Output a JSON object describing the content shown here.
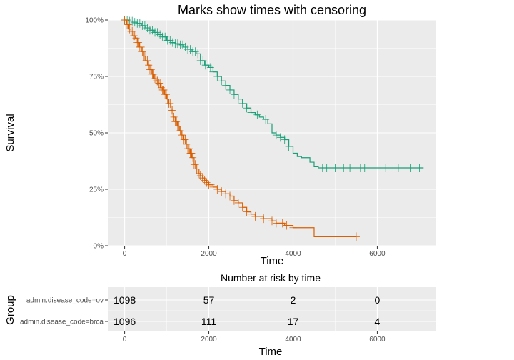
{
  "chart_data": [
    {
      "type": "line",
      "subtype": "kaplan-meier",
      "title": "Marks show times with censoring",
      "xlabel": "Time",
      "ylabel": "Survival",
      "xlim": [
        -400,
        7400
      ],
      "ylim": [
        0,
        1
      ],
      "x_ticks": [
        0,
        2000,
        4000,
        6000
      ],
      "y_ticks": [
        0,
        0.25,
        0.5,
        0.75,
        1.0
      ],
      "y_tick_labels": [
        "0%",
        "25%",
        "50%",
        "75%",
        "100%"
      ],
      "grid": true,
      "legend": "none",
      "series": [
        {
          "key": "ov",
          "color": "#1b9e77",
          "x": [
            0,
            100,
            200,
            300,
            400,
            500,
            600,
            700,
            800,
            900,
            1000,
            1100,
            1200,
            1300,
            1400,
            1500,
            1600,
            1700,
            1800,
            1900,
            2000,
            2100,
            2200,
            2300,
            2400,
            2500,
            2600,
            2700,
            2800,
            2900,
            3000,
            3100,
            3200,
            3300,
            3400,
            3500,
            3600,
            3700,
            3800,
            3900,
            4000,
            4100,
            4200,
            4400,
            4500,
            4600,
            5000,
            5500,
            6000,
            6500,
            7000,
            7100
          ],
          "y": [
            1.0,
            0.995,
            0.99,
            0.985,
            0.975,
            0.965,
            0.955,
            0.945,
            0.935,
            0.925,
            0.91,
            0.9,
            0.895,
            0.89,
            0.88,
            0.87,
            0.86,
            0.85,
            0.82,
            0.8,
            0.79,
            0.77,
            0.75,
            0.73,
            0.71,
            0.69,
            0.67,
            0.65,
            0.63,
            0.61,
            0.59,
            0.58,
            0.57,
            0.56,
            0.54,
            0.5,
            0.49,
            0.48,
            0.47,
            0.44,
            0.41,
            0.395,
            0.39,
            0.37,
            0.35,
            0.345,
            0.345,
            0.345,
            0.345,
            0.345,
            0.345,
            0.345
          ],
          "censor_x": [
            0,
            60,
            120,
            180,
            240,
            300,
            360,
            420,
            480,
            540,
            600,
            660,
            720,
            780,
            840,
            900,
            960,
            1020,
            1080,
            1140,
            1200,
            1260,
            1320,
            1380,
            1440,
            1500,
            1560,
            1620,
            1680,
            1740,
            1800,
            1860,
            1920,
            1980,
            2040,
            2100,
            2200,
            2300,
            2400,
            2500,
            2600,
            2700,
            2800,
            2900,
            3000,
            3150,
            3350,
            3600,
            3700,
            3800,
            3900,
            4700,
            4800,
            5000,
            5200,
            5350,
            5600,
            5700,
            5850,
            6200,
            6500,
            6800,
            7000
          ]
        },
        {
          "key": "brca",
          "color": "#d95f02",
          "x": [
            0,
            50,
            100,
            150,
            200,
            250,
            300,
            350,
            400,
            450,
            500,
            550,
            600,
            650,
            700,
            750,
            800,
            850,
            900,
            950,
            1000,
            1050,
            1100,
            1150,
            1200,
            1250,
            1300,
            1350,
            1400,
            1450,
            1500,
            1550,
            1600,
            1650,
            1700,
            1750,
            1800,
            1850,
            1900,
            1950,
            2000,
            2100,
            2200,
            2300,
            2400,
            2500,
            2600,
            2700,
            2800,
            2900,
            3000,
            3100,
            3200,
            3300,
            3400,
            3500,
            3600,
            3800,
            4000,
            4200,
            4400,
            4500,
            4600,
            5000,
            5500
          ],
          "y": [
            1.0,
            0.98,
            0.96,
            0.95,
            0.93,
            0.92,
            0.9,
            0.88,
            0.86,
            0.84,
            0.82,
            0.8,
            0.78,
            0.76,
            0.74,
            0.73,
            0.72,
            0.7,
            0.69,
            0.67,
            0.65,
            0.63,
            0.6,
            0.57,
            0.55,
            0.53,
            0.51,
            0.49,
            0.47,
            0.45,
            0.43,
            0.41,
            0.39,
            0.36,
            0.34,
            0.32,
            0.31,
            0.3,
            0.29,
            0.28,
            0.27,
            0.26,
            0.25,
            0.24,
            0.23,
            0.22,
            0.2,
            0.19,
            0.17,
            0.15,
            0.14,
            0.13,
            0.13,
            0.12,
            0.12,
            0.11,
            0.1,
            0.09,
            0.08,
            0.08,
            0.08,
            0.04,
            0.04,
            0.04,
            0.04
          ],
          "censor_x": [
            0,
            30,
            60,
            90,
            120,
            150,
            180,
            210,
            240,
            270,
            300,
            330,
            360,
            390,
            420,
            450,
            480,
            510,
            540,
            570,
            600,
            630,
            660,
            690,
            720,
            750,
            780,
            810,
            840,
            870,
            900,
            930,
            960,
            990,
            1020,
            1050,
            1080,
            1110,
            1140,
            1170,
            1200,
            1230,
            1260,
            1290,
            1320,
            1350,
            1380,
            1410,
            1440,
            1470,
            1500,
            1530,
            1560,
            1590,
            1620,
            1650,
            1680,
            1710,
            1740,
            1770,
            1800,
            1850,
            1900,
            1950,
            2000,
            2050,
            2100,
            2200,
            2300,
            2400,
            2500,
            2600,
            2700,
            2800,
            2900,
            3000,
            3100,
            3300,
            3500,
            3600,
            3750,
            3850,
            4000,
            5500
          ]
        }
      ]
    },
    {
      "type": "table",
      "title": "Number at risk by time",
      "xlabel": "Time",
      "ylabel": "Group",
      "xlim": [
        -400,
        7400
      ],
      "x_ticks": [
        0,
        2000,
        4000,
        6000
      ],
      "rows": [
        {
          "label": "admin.disease_code=ov",
          "values": [
            "1098",
            "57",
            "2",
            "0"
          ]
        },
        {
          "label": "admin.disease_code=brca",
          "values": [
            "1096",
            "111",
            "17",
            "4"
          ]
        }
      ],
      "value_times": [
        0,
        2000,
        4000,
        6000
      ]
    }
  ]
}
